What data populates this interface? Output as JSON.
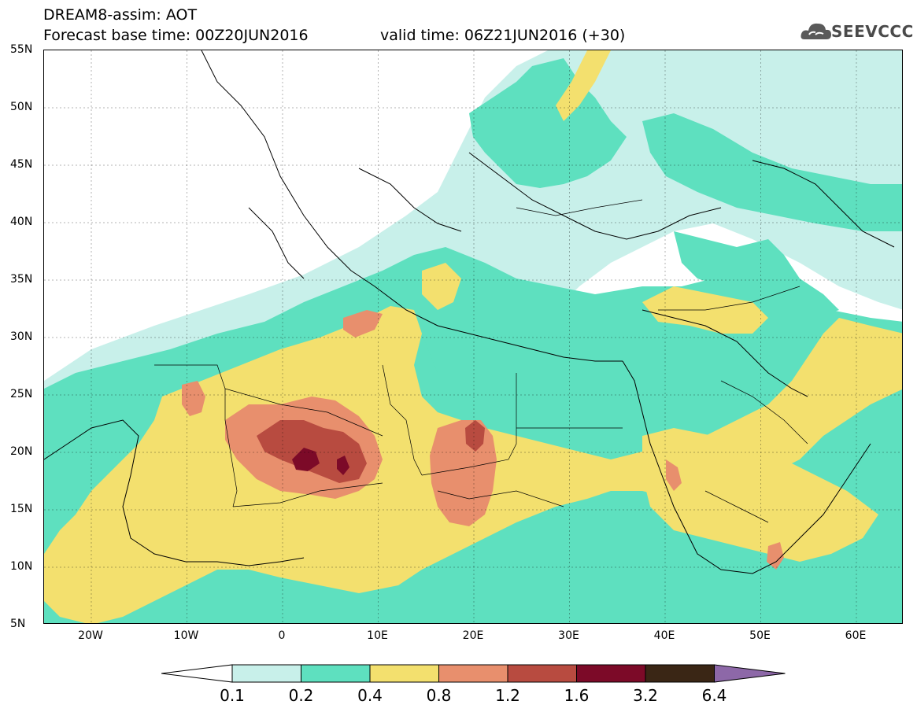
{
  "header": {
    "title": "DREAM8-assim: AOT",
    "base_time": "Forecast base time: 00Z20JUN2016",
    "valid_time": "valid time: 06Z21JUN2016 (+30)",
    "logo_text": "SEEVCCC"
  },
  "map": {
    "lat_labels": [
      "55N",
      "50N",
      "45N",
      "40N",
      "35N",
      "30N",
      "25N",
      "20N",
      "15N",
      "10N",
      "5N"
    ],
    "lon_labels": [
      "20W",
      "10W",
      "0",
      "10E",
      "20E",
      "30E",
      "40E",
      "50E",
      "60E"
    ],
    "colors": {
      "c01": "#c8f0ea",
      "c02": "#5ee0bf",
      "c04": "#f3e06e",
      "c08": "#e88f6d",
      "c12": "#b84b40",
      "c16": "#7c0a28",
      "c32": "#3a2615",
      "c64": "#8d68a8"
    }
  },
  "colorbar": {
    "labels": [
      "0.1",
      "0.2",
      "0.4",
      "0.8",
      "1.2",
      "1.6",
      "3.2",
      "6.4"
    ],
    "colors": [
      "#c8f0ea",
      "#5ee0bf",
      "#f3e06e",
      "#e88f6d",
      "#b84b40",
      "#7c0a28",
      "#3a2615"
    ],
    "over_color": "#8d68a8",
    "under_color": "#ffffff"
  }
}
